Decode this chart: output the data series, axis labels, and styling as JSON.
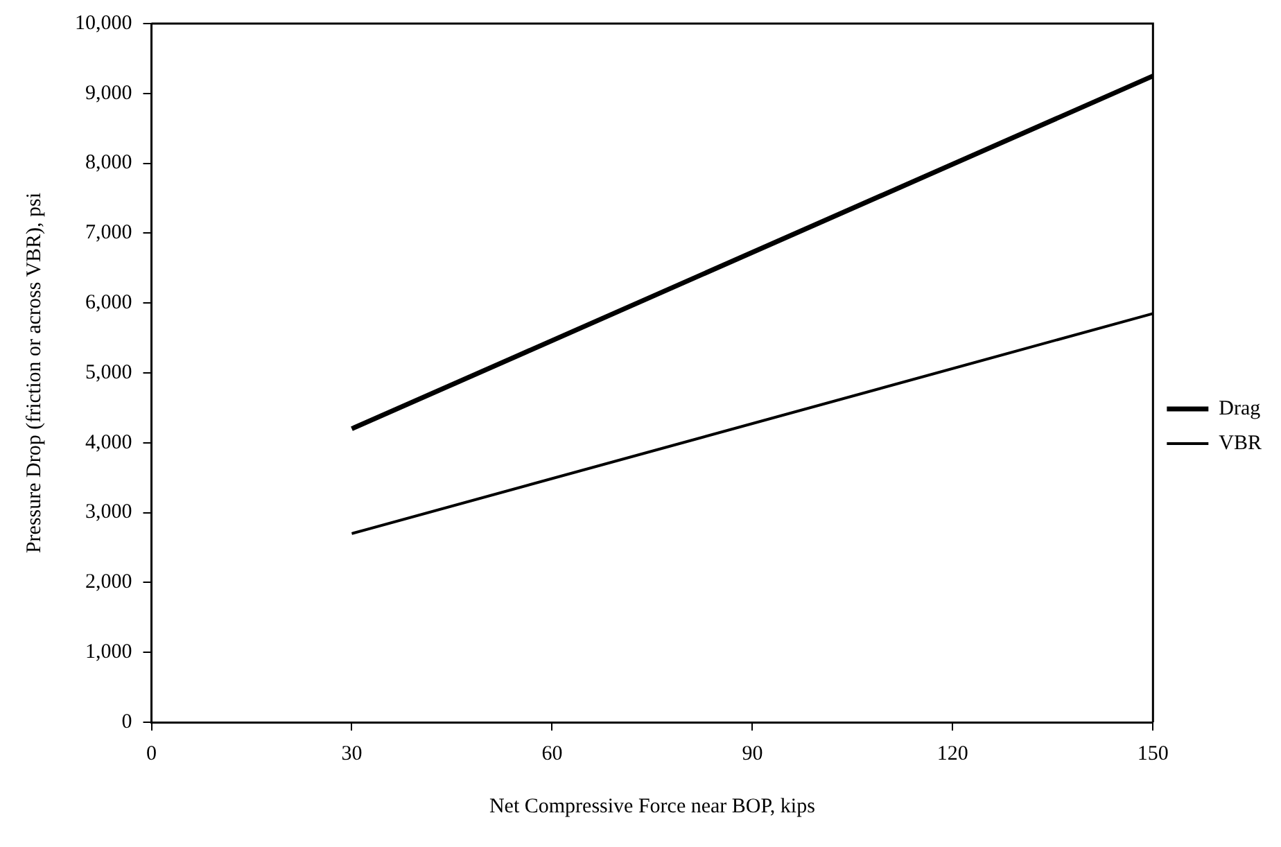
{
  "chart_data": {
    "type": "line",
    "xlabel": "Net Compressive Force near BOP, kips",
    "ylabel": "Pressure Drop (friction or across VBR), psi",
    "x": [
      30,
      150
    ],
    "series": [
      {
        "name": "Drag",
        "color": "#000000",
        "values": [
          4200,
          9250
        ]
      },
      {
        "name": "VBR",
        "color": "#000000",
        "values": [
          2700,
          5850
        ]
      }
    ],
    "xlim": [
      0,
      150
    ],
    "xticks": [
      0,
      30,
      60,
      90,
      120,
      150
    ],
    "ylim": [
      0,
      10000
    ],
    "yticks": [
      {
        "value": 0,
        "label": "0"
      },
      {
        "value": 1000,
        "label": "1,000"
      },
      {
        "value": 2000,
        "label": "2,000"
      },
      {
        "value": 3000,
        "label": "3,000"
      },
      {
        "value": 4000,
        "label": "4,000"
      },
      {
        "value": 5000,
        "label": "5,000"
      },
      {
        "value": 6000,
        "label": "6,000"
      },
      {
        "value": 7000,
        "label": "7,000"
      },
      {
        "value": 8000,
        "label": "8,000"
      },
      {
        "value": 9000,
        "label": "9,000"
      },
      {
        "value": 10000,
        "label": "10,000"
      }
    ],
    "grid": false,
    "legend": "right",
    "marker": "none",
    "line_style": "solid"
  }
}
